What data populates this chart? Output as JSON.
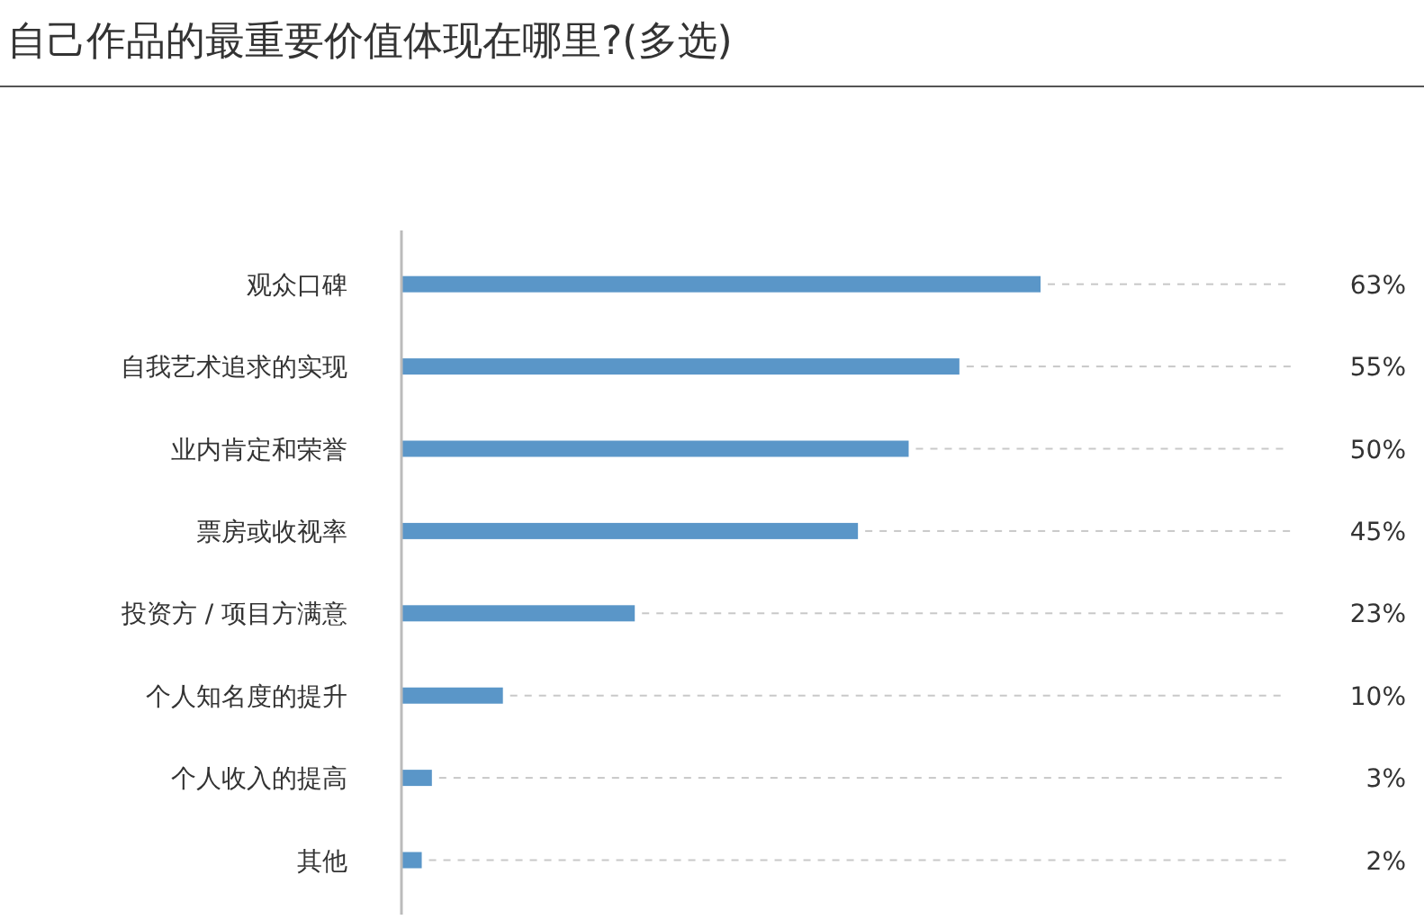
{
  "chart_data": {
    "type": "bar",
    "orientation": "horizontal",
    "title": "自己作品的最重要价值体现在哪里?(多选)",
    "categories": [
      "观众口碑",
      "自我艺术追求的实现",
      "业内肯定和荣誉",
      "票房或收视率",
      "投资方 / 项目方满意",
      "个人知名度的提升",
      "个人收入的提高",
      "其他"
    ],
    "values": [
      63,
      55,
      50,
      45,
      23,
      10,
      3,
      2
    ],
    "value_labels": [
      "63%",
      "55%",
      "50%",
      "45%",
      "23%",
      "10%",
      "3%",
      "2%"
    ],
    "color": "#5a96c8"
  }
}
